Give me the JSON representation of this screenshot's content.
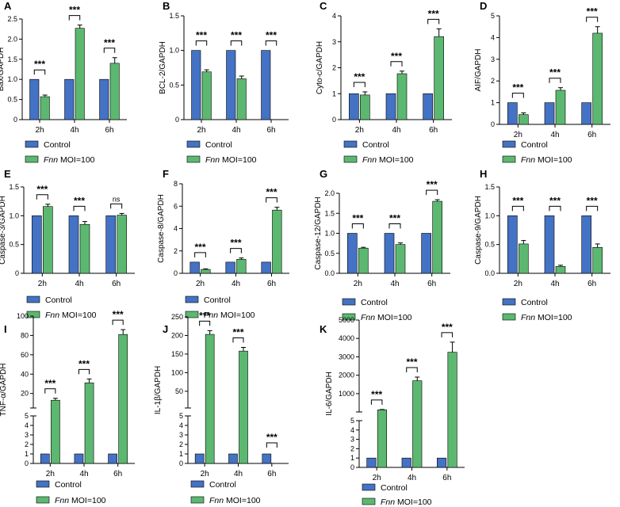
{
  "colors": {
    "control": "#4472c4",
    "fnn": "#5cb870",
    "axis": "#000000"
  },
  "legend": {
    "control": "Control",
    "fnn_italic": "Fnn",
    "fnn_rest": " MOI=100"
  },
  "chart_data": [
    {
      "letter": "A",
      "type": "bar",
      "ylabel": "Bax/GAPDH",
      "categories": [
        "2h",
        "4h",
        "6h"
      ],
      "ylim": [
        0,
        2.5
      ],
      "yticks": [
        "0",
        "0.5",
        "1.0",
        "1.5",
        "2.0",
        "2.5"
      ],
      "series": [
        {
          "name": "Control",
          "values": [
            1,
            1,
            1
          ],
          "errors": [
            0,
            0,
            0
          ]
        },
        {
          "name": "Fnn MOI=100",
          "values": [
            0.57,
            2.27,
            1.4
          ],
          "errors": [
            0.04,
            0.08,
            0.14
          ]
        }
      ],
      "significance": [
        "***",
        "***",
        "***"
      ]
    },
    {
      "letter": "B",
      "type": "bar",
      "ylabel": "BCL-2/GAPDH",
      "categories": [
        "2h",
        "4h",
        "6h"
      ],
      "ylim": [
        0,
        1.5
      ],
      "yticks": [
        "0",
        "0.5",
        "1.0",
        "1.5"
      ],
      "series": [
        {
          "name": "Control",
          "values": [
            1,
            1,
            1
          ],
          "errors": [
            0,
            0,
            0
          ]
        },
        {
          "name": "Fnn MOI=100",
          "values": [
            0.69,
            0.59,
            0
          ],
          "errors": [
            0.03,
            0.04,
            0
          ]
        }
      ],
      "significance": [
        "***",
        "***",
        "***"
      ]
    },
    {
      "letter": "C",
      "type": "bar",
      "ylabel": "Cyto-c/GAPDH",
      "categories": [
        "2h",
        "4h",
        "6h"
      ],
      "ylim": [
        0,
        4
      ],
      "yticks": [
        "0",
        "1",
        "2",
        "3",
        "4"
      ],
      "series": [
        {
          "name": "Control",
          "values": [
            1,
            1,
            1
          ],
          "errors": [
            0,
            0,
            0
          ]
        },
        {
          "name": "Fnn MOI=100",
          "values": [
            0.95,
            1.77,
            3.2
          ],
          "errors": [
            0.12,
            0.1,
            0.3
          ]
        }
      ],
      "significance": [
        "***",
        "***",
        "***"
      ]
    },
    {
      "letter": "D",
      "type": "bar",
      "ylabel": "AIF/GAPDH",
      "categories": [
        "2h",
        "4h",
        "6h"
      ],
      "ylim": [
        0,
        5
      ],
      "yticks": [
        "0",
        "1",
        "2",
        "3",
        "4",
        "5"
      ],
      "series": [
        {
          "name": "Control",
          "values": [
            1,
            1,
            1
          ],
          "errors": [
            0,
            0,
            0
          ]
        },
        {
          "name": "Fnn MOI=100",
          "values": [
            0.45,
            1.57,
            4.2
          ],
          "errors": [
            0.08,
            0.12,
            0.3
          ]
        }
      ],
      "significance": [
        "***",
        "***",
        "***"
      ]
    },
    {
      "letter": "E",
      "type": "bar",
      "ylabel": "Caspase-3/GAPDH",
      "categories": [
        "2h",
        "4h",
        "6h"
      ],
      "ylim": [
        0,
        1.5
      ],
      "yticks": [
        "0",
        "0.5",
        "1.0",
        "1.5"
      ],
      "series": [
        {
          "name": "Control",
          "values": [
            1,
            1,
            1
          ],
          "errors": [
            0,
            0,
            0
          ]
        },
        {
          "name": "Fnn MOI=100",
          "values": [
            1.16,
            0.85,
            1.01
          ],
          "errors": [
            0.04,
            0.05,
            0.03
          ]
        }
      ],
      "significance": [
        "***",
        "***",
        "ns"
      ]
    },
    {
      "letter": "F",
      "type": "bar",
      "ylabel": "Caspase-8/GAPDH",
      "categories": [
        "2h",
        "4h",
        "6h"
      ],
      "ylim": [
        0,
        8
      ],
      "yticks": [
        "0",
        "2",
        "4",
        "6",
        "8"
      ],
      "series": [
        {
          "name": "Control",
          "values": [
            1,
            1,
            1
          ],
          "errors": [
            0,
            0,
            0
          ]
        },
        {
          "name": "Fnn MOI=100",
          "values": [
            0.35,
            1.25,
            5.65
          ],
          "errors": [
            0.05,
            0.12,
            0.25
          ]
        }
      ],
      "significance": [
        "***",
        "***",
        "***"
      ]
    },
    {
      "letter": "G",
      "type": "bar",
      "ylabel": "Caspase-12/GAPDH",
      "categories": [
        "2h",
        "4h",
        "6h"
      ],
      "ylim": [
        0,
        2
      ],
      "yticks": [
        "0.0",
        "0.5",
        "1.0",
        "1.5",
        "2.0"
      ],
      "series": [
        {
          "name": "Control",
          "values": [
            1,
            1,
            1
          ],
          "errors": [
            0,
            0,
            0
          ]
        },
        {
          "name": "Fnn MOI=100",
          "values": [
            0.63,
            0.72,
            1.8
          ],
          "errors": [
            0.02,
            0.04,
            0.04
          ]
        }
      ],
      "significance": [
        "***",
        "***",
        "***"
      ]
    },
    {
      "letter": "H",
      "type": "bar",
      "ylabel": "Caspase-9/GAPDH",
      "categories": [
        "2h",
        "4h",
        "6h"
      ],
      "ylim": [
        0,
        1.5
      ],
      "yticks": [
        "0.0",
        "0.5",
        "1.0",
        "1.5"
      ],
      "series": [
        {
          "name": "Control",
          "values": [
            1,
            1,
            1
          ],
          "errors": [
            0,
            0,
            0
          ]
        },
        {
          "name": "Fnn MOI=100",
          "values": [
            0.51,
            0.12,
            0.45
          ],
          "errors": [
            0.06,
            0.02,
            0.06
          ]
        }
      ],
      "significance": [
        "***",
        "***",
        "***"
      ]
    },
    {
      "letter": "I",
      "type": "bar",
      "broken_axis": true,
      "ylabel": "TNF-α/GAPDH",
      "categories": [
        "2h",
        "4h",
        "6h"
      ],
      "lower": {
        "ylim": [
          0,
          5
        ],
        "yticks": [
          "0",
          "1",
          "2",
          "3",
          "4",
          "5"
        ]
      },
      "upper": {
        "ylim": [
          5,
          100
        ],
        "yticks": [
          "20",
          "40",
          "60",
          "80",
          "100"
        ]
      },
      "series": [
        {
          "name": "Control",
          "values": [
            1,
            1,
            1
          ],
          "errors": [
            0,
            0,
            0
          ]
        },
        {
          "name": "Fnn MOI=100",
          "values": [
            13,
            31,
            81
          ],
          "errors": [
            2,
            4,
            5
          ]
        }
      ],
      "significance": [
        "***",
        "***",
        "***"
      ]
    },
    {
      "letter": "J",
      "type": "bar",
      "broken_axis": true,
      "ylabel": "IL-1β/GAPDH",
      "categories": [
        "2h",
        "4h",
        "6h"
      ],
      "lower": {
        "ylim": [
          0,
          5
        ],
        "yticks": [
          "0",
          "1",
          "2",
          "3",
          "4",
          "5"
        ]
      },
      "upper": {
        "ylim": [
          5,
          250
        ],
        "yticks": [
          "50",
          "100",
          "150",
          "200",
          "250"
        ]
      },
      "series": [
        {
          "name": "Control",
          "values": [
            1,
            1,
            1
          ],
          "errors": [
            0,
            0,
            0
          ]
        },
        {
          "name": "Fnn MOI=100",
          "values": [
            203,
            158,
            0
          ],
          "errors": [
            10,
            10,
            0
          ]
        }
      ],
      "significance": [
        "***",
        "***",
        "***"
      ]
    },
    {
      "letter": "K",
      "type": "bar",
      "broken_axis": true,
      "ylabel": "IL-6/GAPDH",
      "categories": [
        "2h",
        "4h",
        "6h"
      ],
      "lower": {
        "ylim": [
          0,
          5
        ],
        "yticks": [
          "0",
          "1",
          "2",
          "3",
          "4",
          "5"
        ]
      },
      "upper": {
        "ylim": [
          5,
          5000
        ],
        "yticks": [
          "1000",
          "2000",
          "3000",
          "4000",
          "5000"
        ]
      },
      "series": [
        {
          "name": "Control",
          "values": [
            1,
            1,
            1
          ],
          "errors": [
            0,
            0,
            0
          ]
        },
        {
          "name": "Fnn MOI=100",
          "values": [
            120,
            1700,
            3250
          ],
          "errors": [
            20,
            200,
            550
          ]
        }
      ],
      "significance": [
        "***",
        "***",
        "***"
      ]
    }
  ]
}
